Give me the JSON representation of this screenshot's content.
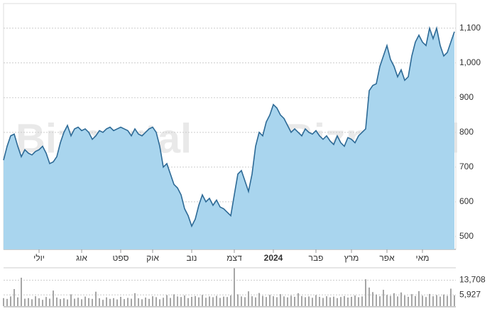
{
  "chart_data": [
    {
      "type": "area",
      "watermark": "Bizportal",
      "categories": [
        null,
        null,
        null,
        null,
        null,
        null,
        null,
        null,
        null,
        null,
        "יולי",
        null,
        null,
        null,
        null,
        null,
        null,
        null,
        null,
        null,
        null,
        null,
        "אוג",
        null,
        null,
        null,
        null,
        null,
        null,
        null,
        null,
        null,
        null,
        "ספט",
        null,
        null,
        null,
        null,
        null,
        null,
        null,
        null,
        "אוק",
        null,
        null,
        null,
        null,
        null,
        null,
        null,
        null,
        null,
        null,
        "נוב",
        null,
        null,
        null,
        null,
        null,
        null,
        null,
        null,
        null,
        null,
        null,
        "דצמ",
        null,
        null,
        null,
        null,
        null,
        null,
        null,
        null,
        null,
        null,
        "2024",
        null,
        null,
        null,
        null,
        null,
        null,
        null,
        null,
        null,
        null,
        null,
        "פבר",
        null,
        null,
        null,
        null,
        null,
        null,
        null,
        null,
        null,
        "מרץ",
        null,
        null,
        null,
        null,
        null,
        null,
        null,
        null,
        null,
        "אפר",
        null,
        null,
        null,
        null,
        null,
        null,
        null,
        null,
        null,
        "מאי",
        null,
        null,
        null,
        null,
        null,
        null,
        null,
        null,
        null
      ],
      "values": [
        720,
        760,
        790,
        795,
        760,
        730,
        750,
        740,
        735,
        745,
        750,
        760,
        740,
        710,
        715,
        730,
        770,
        800,
        820,
        790,
        810,
        815,
        805,
        810,
        800,
        780,
        790,
        805,
        800,
        810,
        815,
        805,
        810,
        815,
        810,
        805,
        790,
        810,
        795,
        790,
        800,
        810,
        815,
        800,
        760,
        700,
        710,
        680,
        650,
        640,
        620,
        580,
        560,
        530,
        550,
        590,
        620,
        600,
        610,
        590,
        605,
        585,
        580,
        570,
        560,
        620,
        680,
        690,
        660,
        630,
        680,
        760,
        800,
        790,
        830,
        850,
        880,
        870,
        850,
        840,
        820,
        800,
        810,
        800,
        790,
        810,
        800,
        795,
        805,
        790,
        780,
        790,
        775,
        765,
        790,
        770,
        760,
        785,
        780,
        770,
        790,
        800,
        810,
        920,
        935,
        940,
        990,
        1020,
        1050,
        1010,
        990,
        960,
        980,
        950,
        960,
        1020,
        1060,
        1080,
        1060,
        1050,
        1100,
        1070,
        1100,
        1050,
        1020,
        1030,
        1060,
        1090
      ],
      "color": "#2d6a96",
      "fill": "#a9d5ee",
      "ylim": [
        463,
        1171
      ],
      "yticks": [
        500,
        600,
        700,
        800,
        900,
        {
          "value": 1000,
          "label": "1,000"
        },
        {
          "value": 1100,
          "label": "1,100"
        }
      ],
      "grid": true
    },
    {
      "type": "bar",
      "values": [
        4200,
        3800,
        5100,
        9000,
        4600,
        15000,
        3900,
        4200,
        3600,
        5200,
        4100,
        3300,
        4800,
        3900,
        8200,
        4500,
        3700,
        4100,
        3500,
        6200,
        3900,
        4400,
        3600,
        5000,
        4200,
        3800,
        7600,
        4100,
        3300,
        4600,
        3800,
        4200,
        3500,
        4900,
        3700,
        4300,
        3900,
        6800,
        4100,
        3600,
        4500,
        3800,
        5200,
        4700,
        3600,
        4400,
        5800,
        4300,
        6200,
        5100,
        4800,
        5600,
        4200,
        4900,
        5300,
        4600,
        5900,
        4400,
        5100,
        4700,
        5400,
        4300,
        5000,
        4800,
        5600,
        20000,
        6200,
        5100,
        4700,
        7800,
        5200,
        4600,
        6900,
        5400,
        4800,
        5900,
        5200,
        4700,
        6300,
        5100,
        4600,
        5500,
        4900,
        6800,
        5300,
        4700,
        5100,
        4400,
        5800,
        4900,
        4300,
        5200,
        4600,
        5000,
        4200,
        4800,
        5300,
        4500,
        4900,
        5600,
        4700,
        5100,
        14200,
        9800,
        7400,
        6100,
        5200,
        8600,
        5900,
        5400,
        6800,
        5100,
        7200,
        5600,
        4900,
        6300,
        5300,
        7900,
        5500,
        4800,
        6400,
        5200,
        5800,
        5000,
        6100,
        5400,
        9200,
        5700
      ],
      "color": "#a6a6a6",
      "ylim": [
        0,
        19500
      ],
      "yticks": [
        {
          "value": 5927,
          "label": "5,927"
        },
        {
          "value": 13708,
          "label": "13,708"
        }
      ],
      "grid": true
    }
  ]
}
